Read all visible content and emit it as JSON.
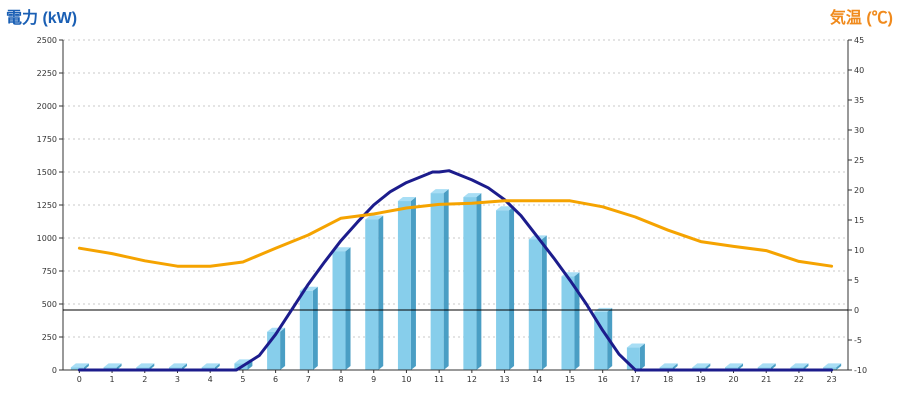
{
  "chart_data": {
    "type": "bar",
    "title_left": "電力 (kW)",
    "title_right": "気温 (℃)",
    "colors": {
      "power_title": "#1a5fb4",
      "temp_title": "#f08a1c",
      "bar_front": "#87ceeb",
      "bar_side": "#4a9ec4",
      "bar_top": "#a8def5",
      "power_line": "#1c1c8c",
      "temp_line": "#f5a300"
    },
    "x_categories": [
      "0",
      "1",
      "2",
      "3",
      "4",
      "5",
      "6",
      "7",
      "8",
      "9",
      "10",
      "11",
      "12",
      "13",
      "14",
      "15",
      "16",
      "17",
      "18",
      "19",
      "20",
      "21",
      "22",
      "23"
    ],
    "left_axis": {
      "min": 0,
      "max": 2500,
      "ticks": [
        "0",
        "250",
        "500",
        "750",
        "1000",
        "1250",
        "1500",
        "1750",
        "2000",
        "2250",
        "2500"
      ]
    },
    "right_axis": {
      "min": -10,
      "max": 45,
      "ticks": [
        "-10",
        "-5",
        "0",
        "5",
        "10",
        "15",
        "20",
        "25",
        "30",
        "35",
        "40",
        "45"
      ]
    },
    "grid": true,
    "series": [
      {
        "kind": "bar",
        "axis": "left",
        "values": [
          20,
          20,
          20,
          20,
          20,
          50,
          290,
          600,
          900,
          1140,
          1280,
          1340,
          1310,
          1210,
          990,
          710,
          440,
          170,
          20,
          20,
          20,
          20,
          20,
          20
        ]
      },
      {
        "kind": "line",
        "axis": "left",
        "color_key": "power_line",
        "x": [
          0,
          1,
          2,
          3,
          4,
          4.8,
          5.5,
          6,
          6.5,
          7,
          7.5,
          8,
          8.5,
          9,
          9.5,
          10,
          10.5,
          10.8,
          11,
          11.3,
          11.6,
          12,
          12.5,
          13,
          13.5,
          14,
          14.5,
          15,
          15.5,
          16,
          16.5,
          17,
          17.5,
          18,
          19,
          20,
          21,
          22,
          23
        ],
        "values": [
          0,
          0,
          0,
          0,
          0,
          0,
          110,
          270,
          460,
          650,
          820,
          980,
          1120,
          1250,
          1350,
          1420,
          1470,
          1500,
          1500,
          1510,
          1480,
          1440,
          1380,
          1290,
          1170,
          1010,
          850,
          680,
          500,
          300,
          120,
          0,
          0,
          0,
          0,
          0,
          0,
          0,
          0
        ]
      },
      {
        "kind": "line",
        "axis": "right",
        "color_key": "temp_line",
        "values": [
          10.3,
          9.4,
          8.2,
          7.3,
          7.3,
          8.0,
          10.3,
          12.5,
          15.3,
          16.0,
          17.0,
          17.6,
          17.8,
          18.2,
          18.2,
          18.2,
          17.2,
          15.5,
          13.3,
          11.4,
          10.6,
          9.9,
          8.1,
          7.3
        ]
      }
    ]
  }
}
